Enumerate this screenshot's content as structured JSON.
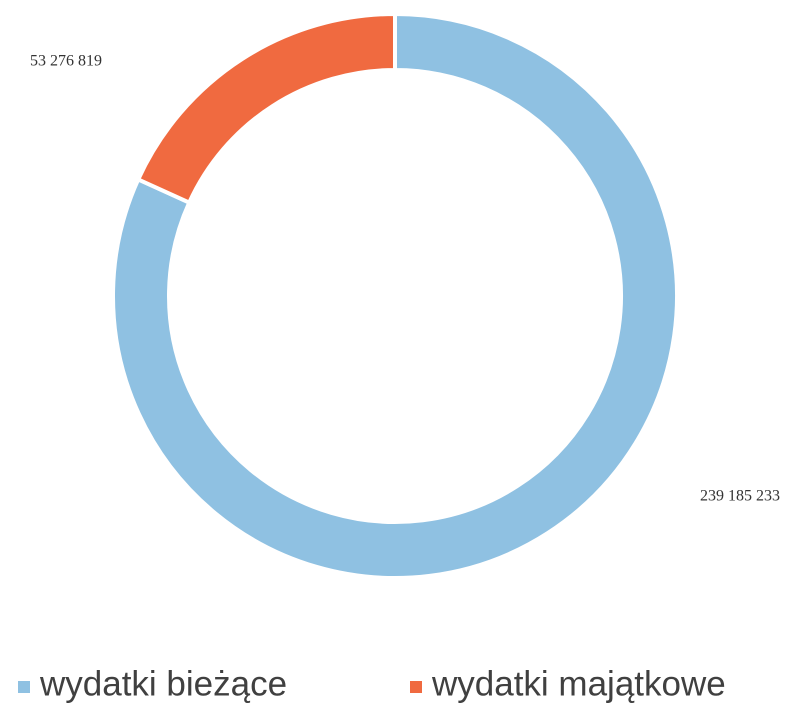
{
  "chart_data": {
    "type": "doughnut",
    "categories": [
      "wydatki bieżące",
      "wydatki majątkowe"
    ],
    "values": [
      239185233,
      53276819
    ],
    "value_labels": [
      "239 185 233",
      "53 276 819"
    ],
    "colors": [
      "#8fc1e2",
      "#f06a40"
    ],
    "legend": "bottom"
  }
}
